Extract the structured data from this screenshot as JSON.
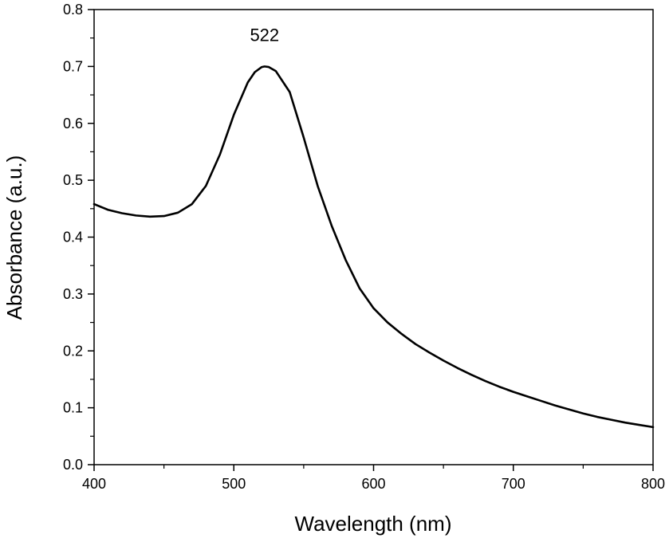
{
  "chart_data": {
    "type": "line",
    "title": "",
    "xlabel": "Wavelength (nm)",
    "ylabel": "Absorbance (a.u.)",
    "xlim": [
      400,
      800
    ],
    "ylim": [
      0.0,
      0.8
    ],
    "x_ticks": [
      "400",
      "500",
      "600",
      "700",
      "800"
    ],
    "y_ticks": [
      "0.0",
      "0.1",
      "0.2",
      "0.3",
      "0.4",
      "0.5",
      "0.6",
      "0.7",
      "0.8"
    ],
    "grid": false,
    "legend": "none",
    "series": [
      {
        "color": "#000000",
        "points": [
          [
            400,
            0.458
          ],
          [
            410,
            0.448
          ],
          [
            420,
            0.442
          ],
          [
            430,
            0.438
          ],
          [
            440,
            0.436
          ],
          [
            450,
            0.437
          ],
          [
            460,
            0.443
          ],
          [
            470,
            0.458
          ],
          [
            480,
            0.49
          ],
          [
            490,
            0.545
          ],
          [
            500,
            0.615
          ],
          [
            510,
            0.672
          ],
          [
            515,
            0.69
          ],
          [
            520,
            0.699
          ],
          [
            522,
            0.7
          ],
          [
            525,
            0.699
          ],
          [
            530,
            0.692
          ],
          [
            540,
            0.655
          ],
          [
            550,
            0.575
          ],
          [
            560,
            0.49
          ],
          [
            570,
            0.42
          ],
          [
            580,
            0.36
          ],
          [
            590,
            0.31
          ],
          [
            600,
            0.275
          ],
          [
            610,
            0.25
          ],
          [
            620,
            0.23
          ],
          [
            630,
            0.212
          ],
          [
            640,
            0.197
          ],
          [
            650,
            0.183
          ],
          [
            660,
            0.17
          ],
          [
            670,
            0.158
          ],
          [
            680,
            0.147
          ],
          [
            690,
            0.137
          ],
          [
            700,
            0.128
          ],
          [
            710,
            0.12
          ],
          [
            720,
            0.112
          ],
          [
            730,
            0.104
          ],
          [
            740,
            0.097
          ],
          [
            750,
            0.09
          ],
          [
            760,
            0.084
          ],
          [
            770,
            0.079
          ],
          [
            780,
            0.074
          ],
          [
            790,
            0.07
          ],
          [
            800,
            0.066
          ]
        ]
      }
    ],
    "annotations": [
      {
        "text": "522",
        "x": 522,
        "y": 0.745
      }
    ]
  }
}
